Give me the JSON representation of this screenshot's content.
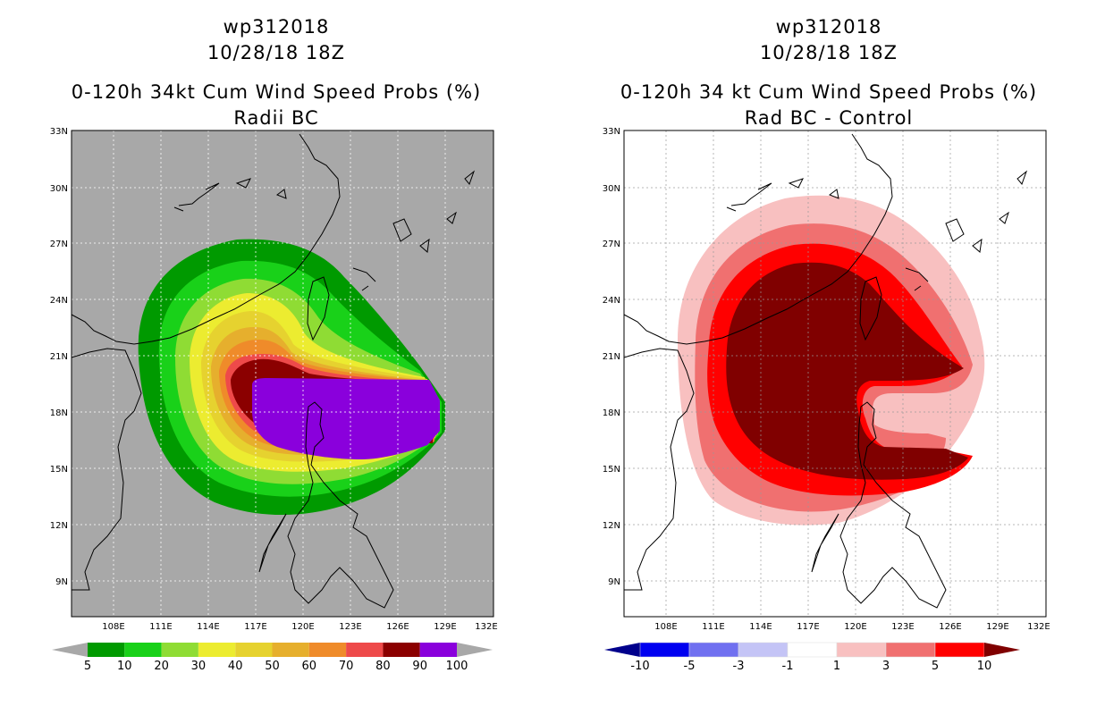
{
  "left": {
    "storm_id": "wp312018",
    "datetime": "10/28/18 18Z",
    "product": "0-120h 34kt Cum Wind Speed Probs (%)",
    "subtitle": "Radii BC",
    "colorbar": {
      "labels": [
        "5",
        "10",
        "20",
        "30",
        "40",
        "50",
        "60",
        "70",
        "80",
        "90",
        "100"
      ],
      "colors": [
        "#009a00",
        "#19d119",
        "#8fdc34",
        "#ecec30",
        "#e6d22f",
        "#e6af2d",
        "#ef8b2a",
        "#ee4a4a",
        "#8b0000",
        "#8a00dc"
      ],
      "end_color": "#a8a8a8"
    }
  },
  "right": {
    "storm_id": "wp312018",
    "datetime": "10/28/18 18Z",
    "product": "0-120h 34 kt Cum Wind Speed Probs (%)",
    "subtitle": "Rad BC - Control",
    "colorbar": {
      "labels": [
        "-10",
        "-5",
        "-3",
        "-1",
        "1",
        "3",
        "5",
        "10"
      ],
      "colors": [
        "#00008c",
        "#0000f0",
        "#7070f0",
        "#c4c4f6",
        "#ffffff",
        "#f8c0c0",
        "#f07070",
        "#ff0000",
        "#800000"
      ],
      "low_end_color": "#00008c",
      "high_end_color": "#800000"
    }
  },
  "axes": {
    "lat_labels": [
      "33N",
      "30N",
      "27N",
      "24N",
      "21N",
      "18N",
      "15N",
      "12N",
      "9N"
    ],
    "lon_labels": [
      "108E",
      "111E",
      "114E",
      "117E",
      "120E",
      "123E",
      "126E",
      "129E",
      "132E"
    ]
  }
}
